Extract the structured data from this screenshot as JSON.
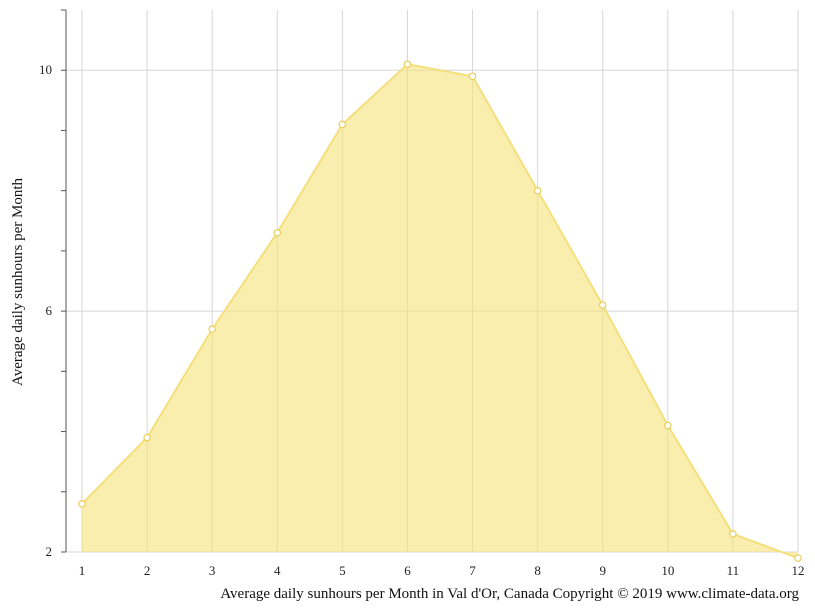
{
  "chart_data": {
    "type": "area",
    "title": "",
    "xlabel": "",
    "ylabel": "Average daily sunhours per Month",
    "caption": "Average daily sunhours per Month in Val d'Or, Canada Copyright © 2019 www.climate-data.org",
    "x": [
      1,
      2,
      3,
      4,
      5,
      6,
      7,
      8,
      9,
      10,
      11,
      12
    ],
    "series": [
      {
        "values": [
          2.8,
          3.9,
          5.7,
          7.3,
          9.1,
          10.1,
          9.9,
          8.0,
          6.1,
          4.1,
          2.3,
          1.9
        ]
      }
    ],
    "xlim": [
      1,
      12
    ],
    "ylim": [
      2,
      11
    ],
    "y_ticks_labeled": [
      2,
      6,
      10
    ],
    "x_ticks": [
      "1",
      "2",
      "3",
      "4",
      "5",
      "6",
      "7",
      "8",
      "9",
      "10",
      "11",
      "12"
    ],
    "grid": true,
    "legend": "none",
    "colors": {
      "fill": "#f7e27a",
      "line": "#f5df7c",
      "marker_stroke": "#e8cf58"
    }
  }
}
